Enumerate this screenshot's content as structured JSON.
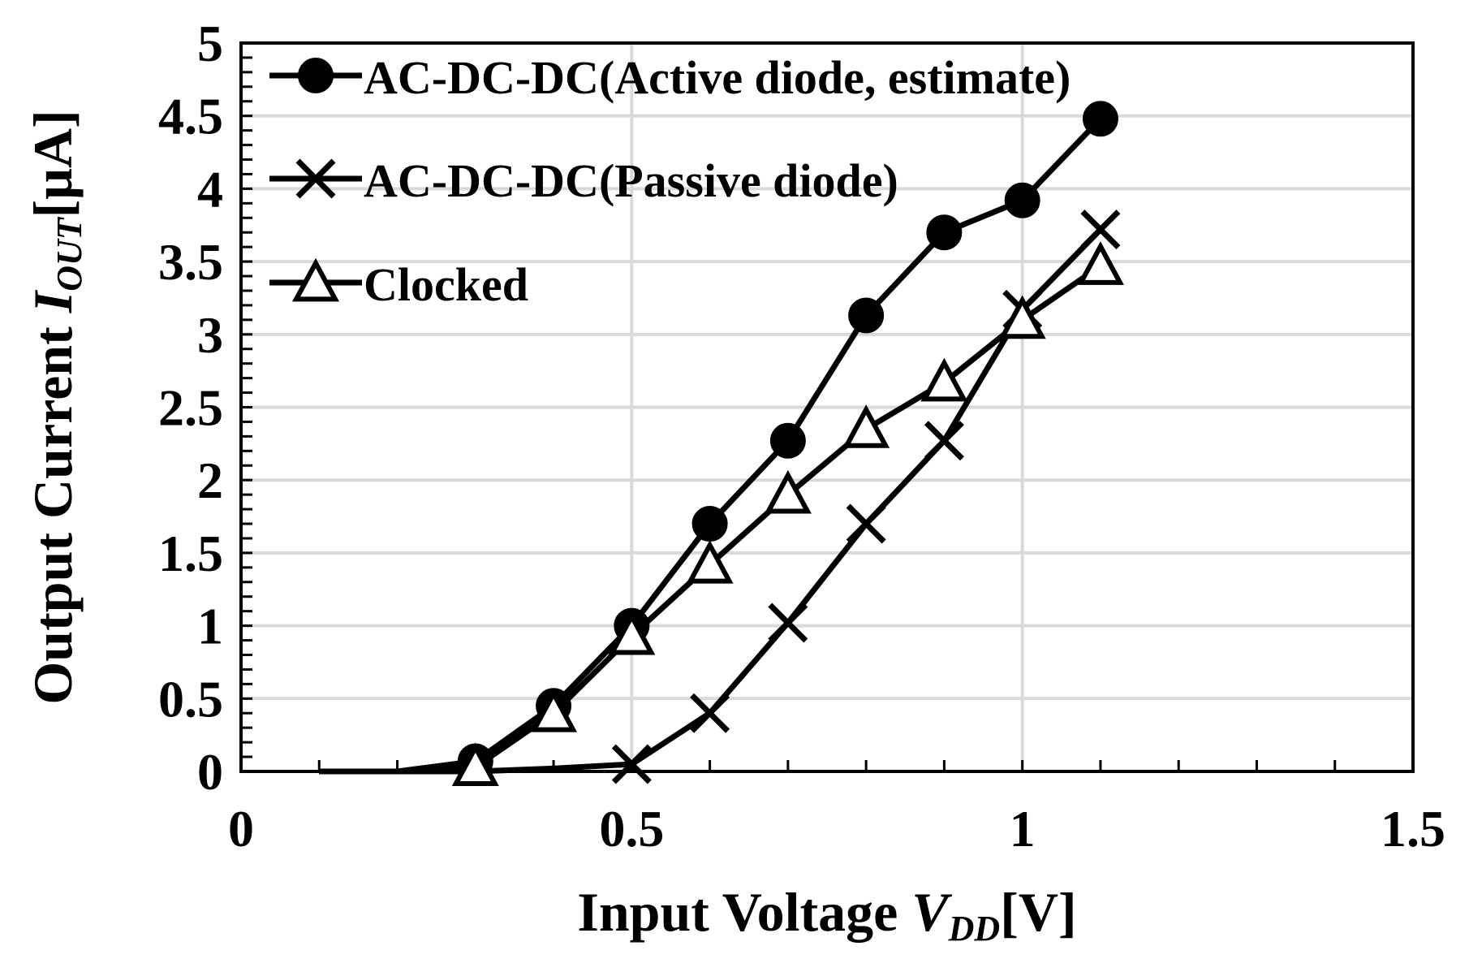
{
  "chart_data": {
    "type": "line",
    "title": "",
    "xlabel": {
      "main": "Input  Voltage ",
      "var": "V",
      "sub": "DD",
      "unit": "[V]"
    },
    "ylabel": {
      "main": "Output  Current ",
      "var": "I",
      "sub": "OUT",
      "unit": "[μA]"
    },
    "xlim": [
      0,
      1.5
    ],
    "ylim": [
      0,
      5
    ],
    "xticks": [
      {
        "value": 0,
        "label": "0"
      },
      {
        "value": 0.5,
        "label": "0.5"
      },
      {
        "value": 1,
        "label": "1"
      },
      {
        "value": 1.5,
        "label": "1.5"
      }
    ],
    "yticks": [
      {
        "value": 0,
        "label": "0"
      },
      {
        "value": 0.5,
        "label": "0.5"
      },
      {
        "value": 1,
        "label": "1"
      },
      {
        "value": 1.5,
        "label": "1.5"
      },
      {
        "value": 2,
        "label": "2"
      },
      {
        "value": 2.5,
        "label": "2.5"
      },
      {
        "value": 3,
        "label": "3"
      },
      {
        "value": 3.5,
        "label": "3.5"
      },
      {
        "value": 4,
        "label": "4"
      },
      {
        "value": 4.5,
        "label": "4.5"
      },
      {
        "value": 5,
        "label": "5"
      }
    ],
    "grid": true,
    "legend": "top-left",
    "series": [
      {
        "name": "AC-DC-DC(Active diode, estimate)",
        "marker": "circle",
        "x": [
          0.1,
          0.2,
          0.3,
          0.4,
          0.5,
          0.6,
          0.7,
          0.8,
          0.9,
          1.0,
          1.1
        ],
        "y": [
          0,
          0,
          0.07,
          0.45,
          1.0,
          1.7,
          2.27,
          3.13,
          3.7,
          3.92,
          4.48
        ],
        "marker_from": 2
      },
      {
        "name": "AC-DC-DC(Passive diode)",
        "marker": "x",
        "x": [
          0.1,
          0.2,
          0.3,
          0.4,
          0.5,
          0.6,
          0.7,
          0.8,
          0.9,
          1.0,
          1.1
        ],
        "y": [
          0,
          0,
          0,
          0.02,
          0.05,
          0.4,
          1.02,
          1.7,
          2.27,
          3.17,
          3.72
        ],
        "marker_from": 4
      },
      {
        "name": "Clocked",
        "marker": "triangle",
        "x": [
          0.1,
          0.2,
          0.3,
          0.4,
          0.5,
          0.6,
          0.7,
          0.8,
          0.9,
          1.0,
          1.1
        ],
        "y": [
          0,
          0,
          0.03,
          0.4,
          0.93,
          1.42,
          1.9,
          2.35,
          2.67,
          3.1,
          3.47
        ],
        "marker_from": 2
      }
    ]
  }
}
